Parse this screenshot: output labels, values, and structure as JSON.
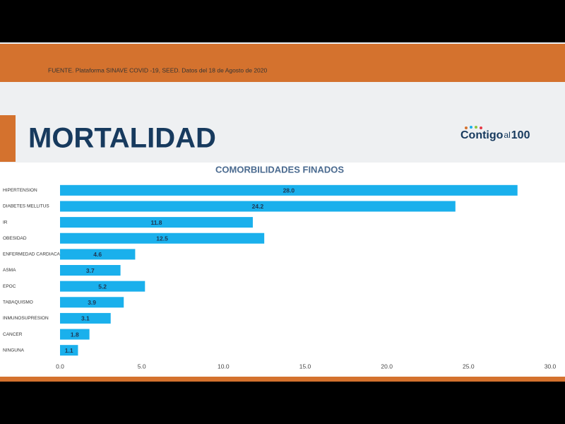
{
  "header": {
    "source": "FUENTE. Plataforma SINAVE COVID -19, SEED. Datos del 18 de Agosto de 2020",
    "title": "MORTALIDAD",
    "logo": [
      "Contigo",
      "al",
      "100"
    ]
  },
  "chart_data": {
    "type": "hbar",
    "title": "COMORBILIDADES FINADOS",
    "categories": [
      "HIPERTENSION",
      "DIABETES MELLITUS",
      "IR",
      "OBESIDAD",
      "ENFERMEDAD CARDIACA",
      "ASMA",
      "EPOC",
      "TABAQUISMO",
      "INMUNOSUPRESION",
      "CANCER",
      "NINGUNA"
    ],
    "values": [
      28.0,
      24.2,
      11.8,
      12.5,
      4.6,
      3.7,
      5.2,
      3.9,
      3.1,
      1.8,
      1.1
    ],
    "value_labels": [
      "28.0",
      "24.2",
      "11.8",
      "12.5",
      "4.6",
      "3.7",
      "5.2",
      "3.9",
      "3.1",
      "1.8",
      "1.1"
    ],
    "color": "#1ab0ec",
    "xlim": [
      0,
      30
    ],
    "xticks": [
      {
        "value": 0,
        "label": "0.0"
      },
      {
        "value": 5,
        "label": "5.0"
      },
      {
        "value": 10,
        "label": "10.0"
      },
      {
        "value": 15,
        "label": "15.0"
      },
      {
        "value": 20,
        "label": "20.0"
      },
      {
        "value": 25,
        "label": "25.0"
      },
      {
        "value": 30,
        "label": "30.0"
      }
    ],
    "grid": false
  }
}
